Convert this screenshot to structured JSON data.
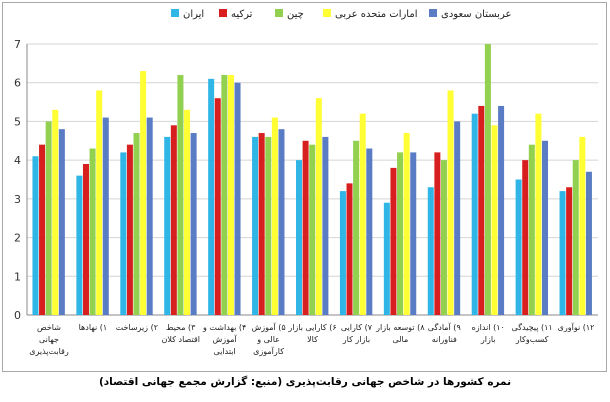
{
  "caption": "نمره کشورها در شاخص جهانی رقابت‌پذیری (منبع: گزارش مجمع جهانی اقتصاد)",
  "chart_data": {
    "type": "bar",
    "title": "",
    "xlabel": "",
    "ylabel": "",
    "ylim": [
      0,
      7
    ],
    "yticks": [
      0,
      1,
      2,
      3,
      4,
      5,
      6,
      7
    ],
    "grid": true,
    "legend_position": "top",
    "categories": [
      [
        "شاخص",
        "جهانی",
        "رقابت‌پذیری"
      ],
      [
        "۱) نهادها"
      ],
      [
        "۲) زیرساخت"
      ],
      [
        "۳) محیط",
        "اقتصاد کلان"
      ],
      [
        "۴) بهداشت و",
        "آموزش",
        "ابتدایی"
      ],
      [
        "۵) آموزش",
        "عالی و",
        "کارآموزی"
      ],
      [
        "۶) کارایی بازار",
        "کالا"
      ],
      [
        "۷) کارایی",
        "بازار کار"
      ],
      [
        "۸) توسعه بازار",
        "مالی"
      ],
      [
        "۹) آمادگی",
        "فناورانه"
      ],
      [
        "۱۰) اندازه",
        "بازار"
      ],
      [
        "۱۱) پیچیدگی",
        "کسب‌وکار"
      ],
      [
        "۱۲) نوآوری"
      ]
    ],
    "series": [
      {
        "name": "ایران",
        "color": "#2fb5e6",
        "values": [
          4.1,
          3.6,
          4.2,
          4.6,
          6.1,
          4.6,
          4.0,
          3.2,
          2.9,
          3.3,
          5.2,
          3.5,
          3.2
        ]
      },
      {
        "name": "ترکیه",
        "color": "#d81f1f",
        "values": [
          4.4,
          3.9,
          4.4,
          4.9,
          5.6,
          4.7,
          4.5,
          3.4,
          3.8,
          4.2,
          5.4,
          4.0,
          3.3
        ]
      },
      {
        "name": "چین",
        "color": "#92d050",
        "values": [
          5.0,
          4.3,
          4.7,
          6.2,
          6.2,
          4.6,
          4.4,
          4.5,
          4.2,
          4.0,
          7.0,
          4.4,
          4.0
        ]
      },
      {
        "name": "امارات متحده عربی",
        "color": "#ffff33",
        "values": [
          5.3,
          5.8,
          6.3,
          5.3,
          6.2,
          5.1,
          5.6,
          5.2,
          4.7,
          5.8,
          4.9,
          5.2,
          4.6
        ]
      },
      {
        "name": "عربستان سعودی",
        "color": "#5a7cc4",
        "values": [
          4.8,
          5.1,
          5.1,
          4.7,
          6.0,
          4.8,
          4.6,
          4.3,
          4.2,
          5.0,
          5.4,
          4.5,
          3.7
        ]
      }
    ]
  }
}
